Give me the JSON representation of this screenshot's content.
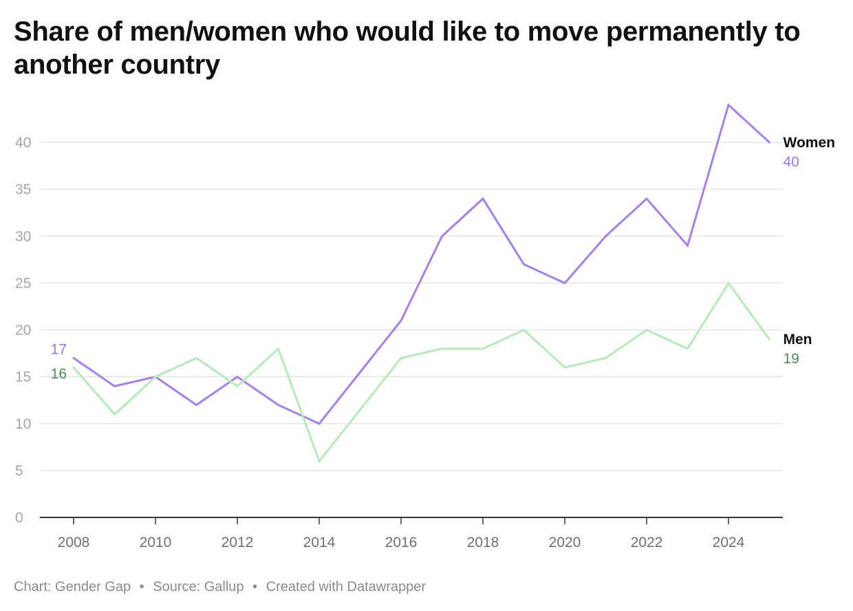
{
  "chart_data": {
    "type": "line",
    "title": "Share of men/women who would like to move permanently to another country",
    "xlabel": "",
    "ylabel": "",
    "x": [
      2008,
      2009,
      2010,
      2011,
      2012,
      2013,
      2014,
      2015,
      2016,
      2017,
      2018,
      2019,
      2020,
      2021,
      2022,
      2023,
      2024,
      2025
    ],
    "x_ticks": [
      "2008",
      "2010",
      "2012",
      "2014",
      "2016",
      "2018",
      "2020",
      "2022",
      "2024"
    ],
    "y_ticks": [
      "0",
      "5",
      "10",
      "15",
      "20",
      "25",
      "30",
      "35",
      "40"
    ],
    "ylim": [
      0,
      44
    ],
    "grid": true,
    "series": [
      {
        "name": "Women",
        "color": "#a57ff0",
        "label_color": "#9b73ee",
        "values": [
          17,
          14,
          15,
          12,
          15,
          12,
          10,
          15.5,
          21,
          30,
          34,
          27,
          25,
          30,
          34,
          29,
          44,
          40
        ],
        "start_label": "17",
        "end_label": "40"
      },
      {
        "name": "Men",
        "color": "#b4ecb8",
        "label_color": "#4f8a53",
        "values": [
          16,
          11,
          15,
          17,
          14,
          18,
          6,
          11.5,
          17,
          18,
          18,
          20,
          16,
          17,
          20,
          18,
          25,
          19
        ],
        "start_label": "16",
        "end_label": "19"
      }
    ]
  },
  "footer": {
    "chart_credit": "Chart: Gender Gap",
    "separator": "•",
    "source": "Source: Gallup",
    "created_with": "Created with Datawrapper"
  }
}
